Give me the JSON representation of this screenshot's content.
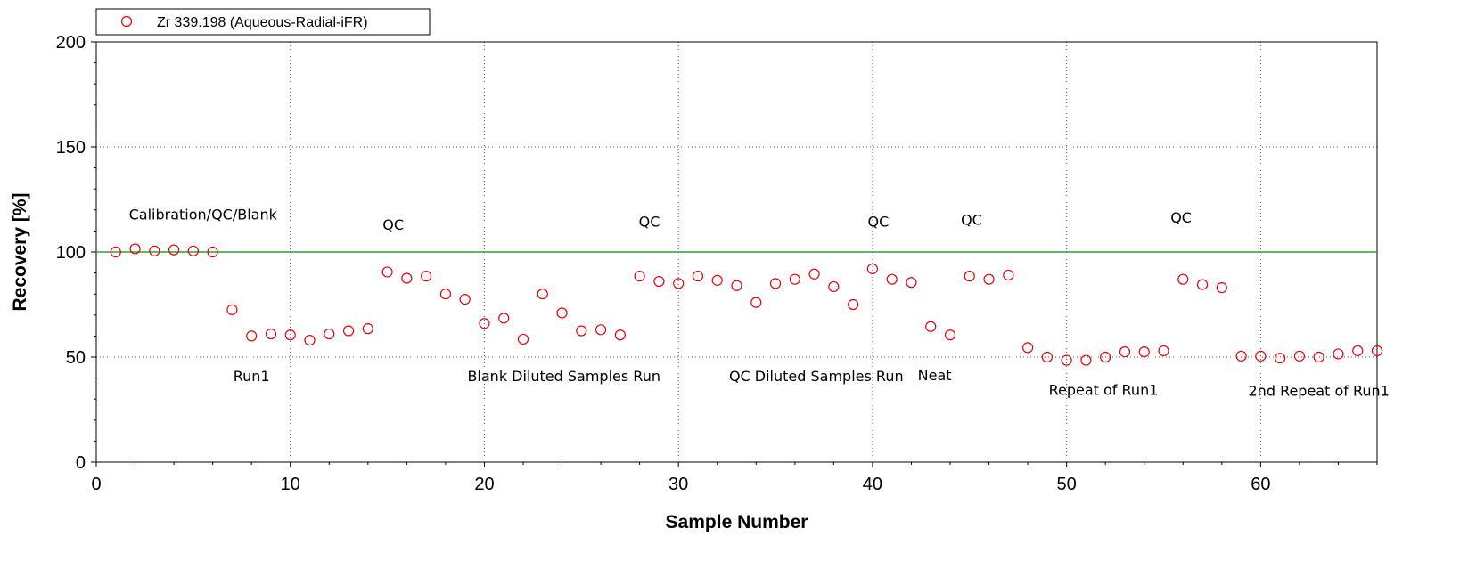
{
  "chart_data": {
    "type": "scatter",
    "xlabel": "Sample Number",
    "ylabel": "Recovery [%]",
    "xlim": [
      0,
      66
    ],
    "ylim": [
      0,
      200
    ],
    "xticks": [
      "0",
      "10",
      "20",
      "30",
      "40",
      "50",
      "60"
    ],
    "yticks": [
      "0",
      "50",
      "100",
      "150",
      "200"
    ],
    "grid": true,
    "legend_position": "top-left",
    "reference_line": {
      "y": 100,
      "color": "#2ca02c"
    },
    "series": [
      {
        "name": "Zr 339.198 (Aqueous-Radial-iFR)",
        "color": "#e8000b",
        "marker": "open-circle",
        "x": [
          1,
          2,
          3,
          4,
          5,
          6,
          7,
          8,
          9,
          10,
          11,
          12,
          13,
          14,
          15,
          16,
          17,
          18,
          19,
          20,
          21,
          22,
          23,
          24,
          25,
          26,
          27,
          28,
          29,
          30,
          31,
          32,
          33,
          34,
          35,
          36,
          37,
          38,
          39,
          40,
          41,
          42,
          43,
          44,
          45,
          46,
          47,
          48,
          49,
          50,
          51,
          52,
          53,
          54,
          55,
          56,
          57,
          58,
          59,
          60,
          61,
          62,
          63,
          64,
          65,
          66
        ],
        "y": [
          100,
          101.5,
          100.5,
          101,
          100.5,
          100,
          72.5,
          60,
          61,
          60.5,
          58,
          61,
          62.5,
          63.5,
          90.5,
          87.5,
          88.5,
          80,
          77.5,
          66,
          68.5,
          58.5,
          80,
          71,
          62.5,
          63,
          60.5,
          88.5,
          86,
          85,
          88.5,
          86.5,
          84,
          76,
          85,
          87,
          89.5,
          83.5,
          75,
          92,
          87,
          85.5,
          64.5,
          60.5,
          88.5,
          87,
          89,
          54.5,
          50,
          48.5,
          48.5,
          50,
          52.5,
          52.5,
          53,
          87,
          84.5,
          83,
          50.5,
          50.5,
          49.5,
          50.5,
          50,
          51.5,
          53,
          53
        ]
      }
    ],
    "annotations": [
      {
        "text": "Calibration/QC/Blank",
        "x": 5.5,
        "y": 115.5
      },
      {
        "text": "QC",
        "x": 15.3,
        "y": 110.5
      },
      {
        "text": "QC",
        "x": 28.5,
        "y": 112
      },
      {
        "text": "QC",
        "x": 40.3,
        "y": 112
      },
      {
        "text": "QC",
        "x": 45.1,
        "y": 113
      },
      {
        "text": "QC",
        "x": 55.9,
        "y": 114
      },
      {
        "text": "Run1",
        "x": 8.0,
        "y": 38.5
      },
      {
        "text": "Blank Diluted Samples Run",
        "x": 24.1,
        "y": 38.5
      },
      {
        "text": "QC Diluted Samples Run",
        "x": 37.1,
        "y": 38.5
      },
      {
        "text": "Neat",
        "x": 43.2,
        "y": 39
      },
      {
        "text": "Repeat of Run1",
        "x": 51.9,
        "y": 32
      },
      {
        "text": "2nd Repeat of Run1",
        "x": 63.0,
        "y": 31.5
      }
    ]
  }
}
